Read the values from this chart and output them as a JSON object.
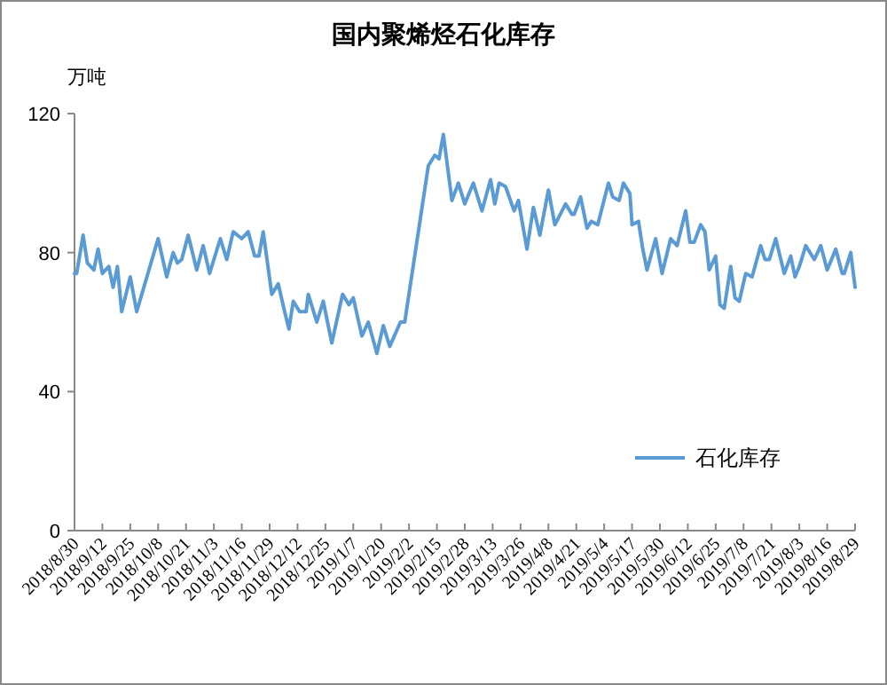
{
  "chart_data": {
    "type": "line",
    "title": "国内聚烯烃石化库存",
    "ylabel": "万吨",
    "x": [
      "2018-08-30",
      "2018-08-31",
      "2018-09-03",
      "2018-09-05",
      "2018-09-08",
      "2018-09-10",
      "2018-09-12",
      "2018-09-15",
      "2018-09-17",
      "2018-09-19",
      "2018-09-21",
      "2018-09-25",
      "2018-09-28",
      "2018-10-08",
      "2018-10-12",
      "2018-10-15",
      "2018-10-17",
      "2018-10-19",
      "2018-10-22",
      "2018-10-26",
      "2018-10-29",
      "2018-11-01",
      "2018-11-06",
      "2018-11-09",
      "2018-11-12",
      "2018-11-16",
      "2018-11-19",
      "2018-11-22",
      "2018-11-24",
      "2018-11-26",
      "2018-11-30",
      "2018-12-03",
      "2018-12-06",
      "2018-12-08",
      "2018-12-10",
      "2018-12-13",
      "2018-12-16",
      "2018-12-17",
      "2018-12-21",
      "2018-12-24",
      "2018-12-28",
      "2019-01-02",
      "2019-01-05",
      "2019-01-07",
      "2019-01-11",
      "2019-01-14",
      "2019-01-18",
      "2019-01-21",
      "2019-01-24",
      "2019-01-29",
      "2019-01-31",
      "2019-02-11",
      "2019-02-14",
      "2019-02-16",
      "2019-02-18",
      "2019-02-22",
      "2019-02-25",
      "2019-02-28",
      "2019-03-04",
      "2019-03-08",
      "2019-03-12",
      "2019-03-14",
      "2019-03-16",
      "2019-03-19",
      "2019-03-23",
      "2019-03-25",
      "2019-03-29",
      "2019-04-01",
      "2019-04-04",
      "2019-04-08",
      "2019-04-11",
      "2019-04-16",
      "2019-04-19",
      "2019-04-20",
      "2019-04-23",
      "2019-04-26",
      "2019-04-28",
      "2019-05-01",
      "2019-05-06",
      "2019-05-08",
      "2019-05-11",
      "2019-05-13",
      "2019-05-16",
      "2019-05-17",
      "2019-05-20",
      "2019-05-22",
      "2019-05-24",
      "2019-05-28",
      "2019-05-31",
      "2019-06-04",
      "2019-06-07",
      "2019-06-11",
      "2019-06-13",
      "2019-06-15",
      "2019-06-18",
      "2019-06-20",
      "2019-06-22",
      "2019-06-25",
      "2019-06-27",
      "2019-06-29",
      "2019-07-02",
      "2019-07-04",
      "2019-07-06",
      "2019-07-09",
      "2019-07-12",
      "2019-07-16",
      "2019-07-18",
      "2019-07-20",
      "2019-07-23",
      "2019-07-27",
      "2019-07-30",
      "2019-08-01",
      "2019-08-03",
      "2019-08-06",
      "2019-08-10",
      "2019-08-13",
      "2019-08-16",
      "2019-08-20",
      "2019-08-23",
      "2019-08-24",
      "2019-08-27",
      "2019-08-29"
    ],
    "series": [
      {
        "name": "石化库存",
        "color": "#5b9bd5",
        "values": [
          74,
          74,
          85,
          77,
          75,
          81,
          74,
          76,
          70,
          76,
          63,
          73,
          63,
          84,
          73,
          80,
          77,
          78,
          85,
          75,
          82,
          74,
          84,
          78,
          86,
          84,
          86,
          79,
          79,
          86,
          68,
          71,
          63,
          58,
          66,
          63,
          63,
          68,
          60,
          66,
          54,
          68,
          65,
          67,
          56,
          60,
          51,
          59,
          53,
          60,
          60,
          105,
          108,
          107,
          114,
          95,
          100,
          94,
          100,
          92,
          101,
          94,
          100,
          99,
          92,
          95,
          81,
          93,
          85,
          98,
          88,
          94,
          91,
          91,
          96,
          87,
          89,
          88,
          100,
          96,
          95,
          100,
          97,
          88,
          89,
          81,
          75,
          84,
          74,
          84,
          82,
          92,
          83,
          83,
          88,
          86,
          75,
          79,
          65,
          64,
          76,
          67,
          66,
          74,
          73,
          82,
          78,
          78,
          84,
          74,
          79,
          73,
          76,
          82,
          78,
          82,
          75,
          81,
          74,
          74,
          80,
          70
        ]
      }
    ],
    "ylim": [
      0,
      120
    ],
    "yticks": [
      0,
      40,
      80,
      120
    ],
    "xlim": [
      "2018-08-30",
      "2019-08-29"
    ],
    "xticks": [
      {
        "value": "2018-08-30",
        "label": "2018/8/30"
      },
      {
        "value": "2018-09-12",
        "label": "2018/9/12"
      },
      {
        "value": "2018-09-25",
        "label": "2018/9/25"
      },
      {
        "value": "2018-10-08",
        "label": "2018/10/8"
      },
      {
        "value": "2018-10-21",
        "label": "2018/10/21"
      },
      {
        "value": "2018-11-03",
        "label": "2018/11/3"
      },
      {
        "value": "2018-11-16",
        "label": "2018/11/16"
      },
      {
        "value": "2018-11-29",
        "label": "2018/11/29"
      },
      {
        "value": "2018-12-12",
        "label": "2018/12/12"
      },
      {
        "value": "2018-12-25",
        "label": "2018/12/25"
      },
      {
        "value": "2019-01-07",
        "label": "2019/1/7"
      },
      {
        "value": "2019-01-20",
        "label": "2019/1/20"
      },
      {
        "value": "2019-02-02",
        "label": "2019/2/2"
      },
      {
        "value": "2019-02-15",
        "label": "2019/2/15"
      },
      {
        "value": "2019-02-28",
        "label": "2019/2/28"
      },
      {
        "value": "2019-03-13",
        "label": "2019/3/13"
      },
      {
        "value": "2019-03-26",
        "label": "2019/3/26"
      },
      {
        "value": "2019-04-08",
        "label": "2019/4/8"
      },
      {
        "value": "2019-04-21",
        "label": "2019/4/21"
      },
      {
        "value": "2019-05-04",
        "label": "2019/5/4"
      },
      {
        "value": "2019-05-17",
        "label": "2019/5/17"
      },
      {
        "value": "2019-05-30",
        "label": "2019/5/30"
      },
      {
        "value": "2019-06-12",
        "label": "2019/6/12"
      },
      {
        "value": "2019-06-25",
        "label": "2019/6/25"
      },
      {
        "value": "2019-07-08",
        "label": "2019/7/8"
      },
      {
        "value": "2019-07-21",
        "label": "2019/7/21"
      },
      {
        "value": "2019-08-03",
        "label": "2019/8/3"
      },
      {
        "value": "2019-08-16",
        "label": "2019/8/16"
      },
      {
        "value": "2019-08-29",
        "label": "2019/8/29"
      }
    ],
    "legend": "right",
    "grid": false,
    "marker": "none",
    "line_style": "solid"
  }
}
